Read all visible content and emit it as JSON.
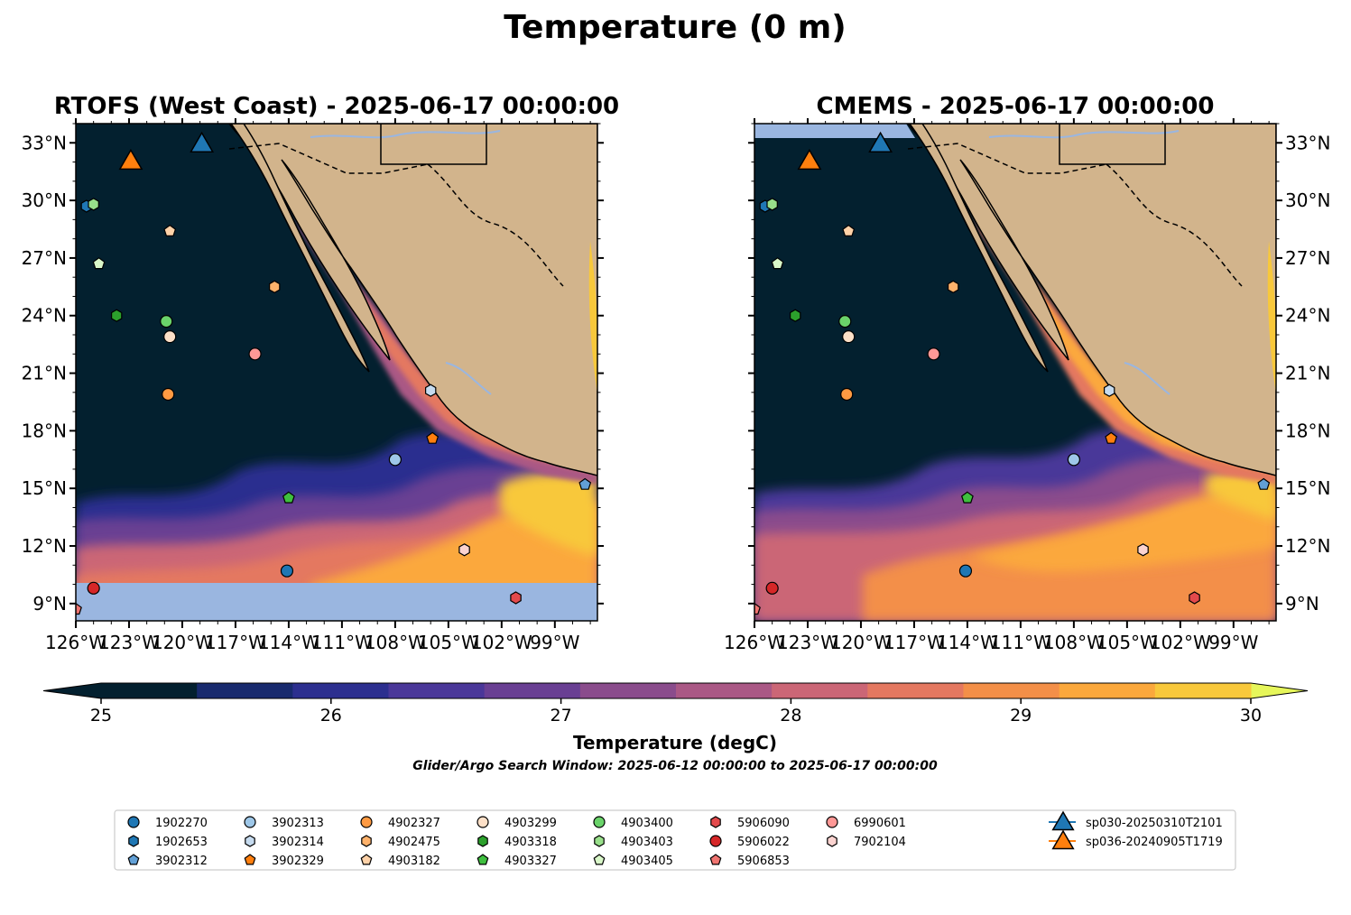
{
  "figure": {
    "title": "Temperature (0 m)",
    "subtitle": "Glider/Argo Search Window: 2025-06-12 00:00:00 to 2025-06-17 00:00:00"
  },
  "panels": [
    {
      "id": "rtofs",
      "title": "RTOFS (West Coast) - 2025-06-17 00:00:00"
    },
    {
      "id": "cmems",
      "title": "CMEMS - 2025-06-17 00:00:00"
    }
  ],
  "axes": {
    "lon_ticks": [
      -126,
      -123,
      -120,
      -117,
      -114,
      -111,
      -108,
      -105,
      -102,
      -99
    ],
    "lon_tick_labels": [
      "126°W",
      "123°W",
      "120°W",
      "117°W",
      "114°W",
      "111°W",
      "108°W",
      "105°W",
      "102°W",
      "99°W"
    ],
    "lat_ticks": [
      9,
      12,
      15,
      18,
      21,
      24,
      27,
      30,
      33
    ],
    "lat_tick_labels": [
      "9°N",
      "12°N",
      "15°N",
      "18°N",
      "21°N",
      "24°N",
      "27°N",
      "30°N",
      "33°N"
    ],
    "lon_range": [
      -126,
      -96.6
    ],
    "lat_range": [
      8.1,
      34.0
    ]
  },
  "colorbar": {
    "label": "Temperature (degC)",
    "min": 25,
    "max": 30,
    "step": 0.5,
    "tick_values": [
      25,
      26,
      27,
      28,
      29,
      30
    ],
    "tick_labels": [
      "25",
      "26",
      "27",
      "28",
      "29",
      "30"
    ],
    "extend": "both",
    "colors": [
      "#03202f",
      "#182a6e",
      "#2c2f8f",
      "#4a3799",
      "#693f93",
      "#8a4c8c",
      "#aa5885",
      "#cb6676",
      "#e47860",
      "#f38f48",
      "#fba83c",
      "#f8c83b"
    ],
    "under_color": "#03202f",
    "over_color": "#e6f65a"
  },
  "colors": {
    "land": "#d2b48c",
    "nodata": "#9ab6e0",
    "cold_ocean": "#03202f",
    "river": "#9ab6e0"
  },
  "chart_data": {
    "type": "map",
    "variable": "Temperature (0 m)",
    "units": "degC",
    "observations": [
      {
        "id": "1902270",
        "lon": -114.1,
        "lat": 10.7,
        "marker": "circle",
        "color": "#1f77b4"
      },
      {
        "id": "1902653",
        "lon": -125.4,
        "lat": 29.7,
        "marker": "hexagon",
        "color": "#1f77b4"
      },
      {
        "id": "3902312",
        "lon": -97.3,
        "lat": 15.2,
        "marker": "pentagon",
        "color": "#62a0d6"
      },
      {
        "id": "3902313",
        "lon": -108.0,
        "lat": 16.5,
        "marker": "circle",
        "color": "#9ec7e8"
      },
      {
        "id": "3902314",
        "lon": -106.0,
        "lat": 20.1,
        "marker": "hexagon",
        "color": "#c6dbef"
      },
      {
        "id": "3902329",
        "lon": -105.9,
        "lat": 17.6,
        "marker": "pentagon",
        "color": "#ff7f0e"
      },
      {
        "id": "4902327",
        "lon": -120.8,
        "lat": 19.9,
        "marker": "circle",
        "color": "#ff9a42"
      },
      {
        "id": "4902475",
        "lon": -114.8,
        "lat": 25.5,
        "marker": "hexagon",
        "color": "#ffb26b"
      },
      {
        "id": "4903182",
        "lon": -120.7,
        "lat": 28.4,
        "marker": "pentagon",
        "color": "#ffd2a8"
      },
      {
        "id": "4903299",
        "lon": -120.7,
        "lat": 22.9,
        "marker": "circle",
        "color": "#fde0c8"
      },
      {
        "id": "4903318",
        "lon": -123.7,
        "lat": 24.0,
        "marker": "hexagon",
        "color": "#2ca02c"
      },
      {
        "id": "4903327",
        "lon": -114.0,
        "lat": 14.5,
        "marker": "pentagon",
        "color": "#3fbf3f"
      },
      {
        "id": "4903400",
        "lon": -120.9,
        "lat": 23.7,
        "marker": "circle",
        "color": "#6ad36a"
      },
      {
        "id": "4903403",
        "lon": -125.0,
        "lat": 29.8,
        "marker": "hexagon",
        "color": "#98df8a"
      },
      {
        "id": "4903405",
        "lon": -124.7,
        "lat": 26.7,
        "marker": "pentagon",
        "color": "#d9f7c9"
      },
      {
        "id": "5906022",
        "lon": -125.0,
        "lat": 9.8,
        "marker": "circle",
        "color": "#d62728"
      },
      {
        "id": "5906090",
        "lon": -101.2,
        "lat": 9.3,
        "marker": "hexagon",
        "color": "#e34a4c"
      },
      {
        "id": "5906853",
        "lon": -126.0,
        "lat": 8.7,
        "marker": "pentagon",
        "color": "#f07470"
      },
      {
        "id": "6990601",
        "lon": -115.9,
        "lat": 22.0,
        "marker": "circle",
        "color": "#ff9896"
      },
      {
        "id": "7902104",
        "lon": -104.1,
        "lat": 11.8,
        "marker": "hexagon",
        "color": "#fbd3d0"
      }
    ],
    "gliders": [
      {
        "id": "sp030-20250310T2101",
        "lon": -118.9,
        "lat": 33.0,
        "marker": "triangle",
        "color": "#1f77b4"
      },
      {
        "id": "sp036-20240905T1719",
        "lon": -122.9,
        "lat": 32.1,
        "marker": "triangle",
        "color": "#ff7f0e"
      }
    ]
  },
  "legend": {
    "columns": [
      [
        "1902270",
        "1902653",
        "3902312"
      ],
      [
        "3902313",
        "3902314",
        "3902329"
      ],
      [
        "4902327",
        "4902475",
        "4903182"
      ],
      [
        "4903299",
        "4903318",
        "4903327"
      ],
      [
        "4903400",
        "4903403",
        "4903405"
      ],
      [
        "5906090",
        "5906022",
        "5906853"
      ],
      [
        "6990601",
        "7902104"
      ],
      [
        "sp030-20250310T2101",
        "sp036-20240905T1719"
      ]
    ]
  }
}
